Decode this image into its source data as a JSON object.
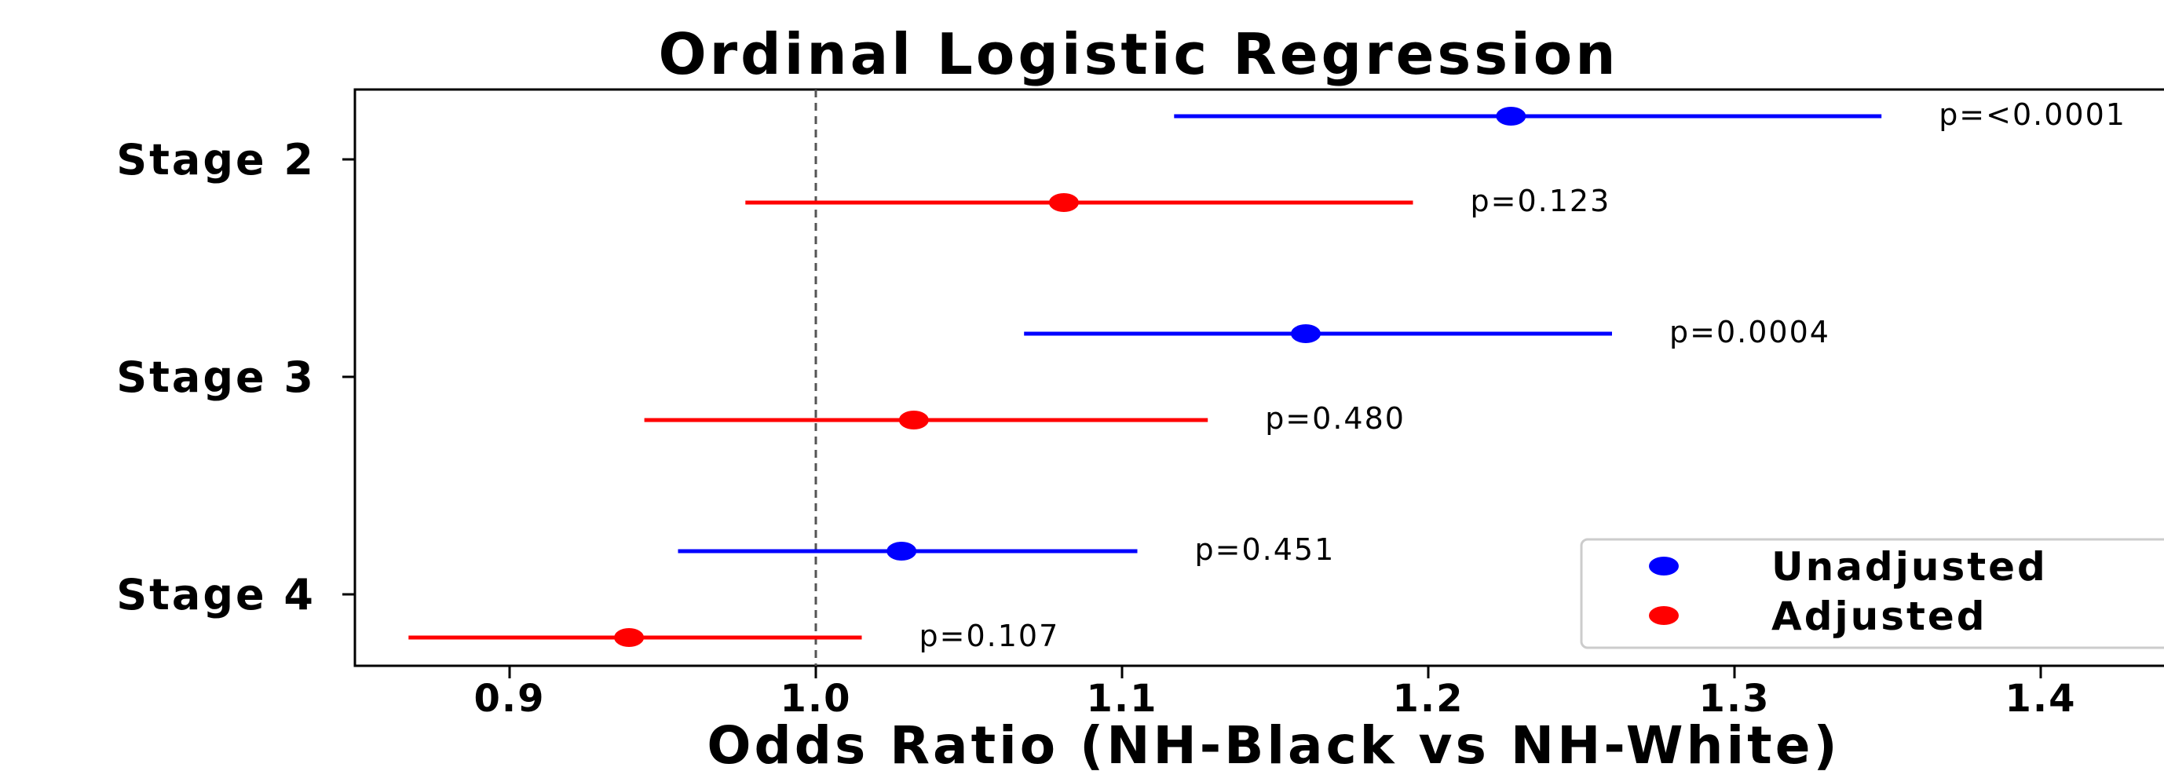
{
  "chart_data": {
    "type": "forest",
    "title": "Ordinal Logistic Regression",
    "xlabel": "Odds Ratio (NH-Black vs NH-White)",
    "xlim": [
      0.85,
      1.45
    ],
    "xticks": [
      "0.9",
      "1.0",
      "1.1",
      "1.2",
      "1.3",
      "1.4"
    ],
    "reference_line": 1.0,
    "categories": [
      "Stage 2",
      "Stage 3",
      "Stage 4"
    ],
    "series": [
      {
        "name": "Unadjusted",
        "color": "#0000ff",
        "points": [
          {
            "category": "Stage 2",
            "or": 1.227,
            "ci_low": 1.117,
            "ci_high": 1.348,
            "p_label": "p=<0.0001"
          },
          {
            "category": "Stage 3",
            "or": 1.16,
            "ci_low": 1.068,
            "ci_high": 1.26,
            "p_label": "p=0.0004"
          },
          {
            "category": "Stage 4",
            "or": 1.028,
            "ci_low": 0.955,
            "ci_high": 1.105,
            "p_label": "p=0.451"
          }
        ]
      },
      {
        "name": "Adjusted",
        "color": "#ff0000",
        "points": [
          {
            "category": "Stage 2",
            "or": 1.081,
            "ci_low": 0.977,
            "ci_high": 1.195,
            "p_label": "p=0.123"
          },
          {
            "category": "Stage 3",
            "or": 1.032,
            "ci_low": 0.944,
            "ci_high": 1.128,
            "p_label": "p=0.480"
          },
          {
            "category": "Stage 4",
            "or": 0.939,
            "ci_low": 0.867,
            "ci_high": 1.015,
            "p_label": "p=0.107"
          }
        ]
      }
    ],
    "legend": {
      "position": "lower-right",
      "entries": [
        "Unadjusted",
        "Adjusted"
      ]
    }
  }
}
